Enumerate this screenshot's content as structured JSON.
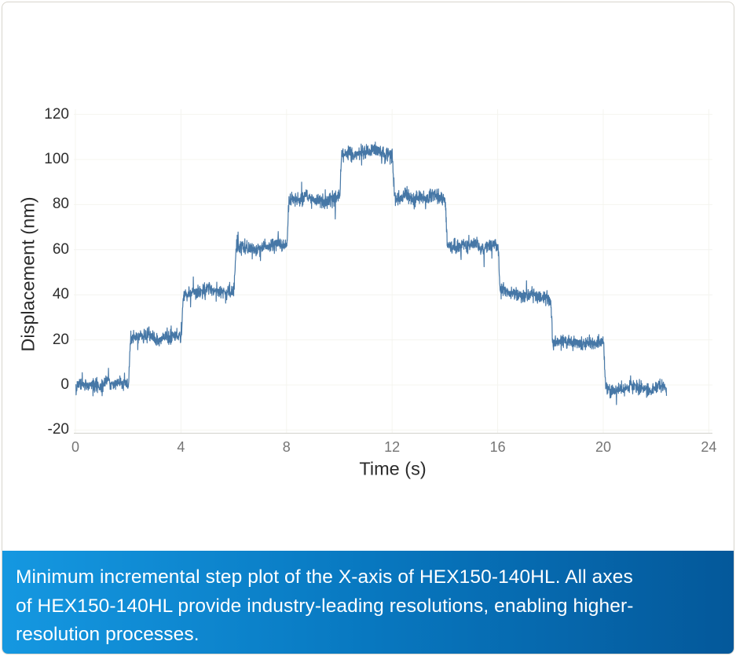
{
  "caption": {
    "lines": [
      "Minimum incremental step plot of the X-axis of HEX150-140HL. All axes",
      "of HEX150-140HL provide industry-leading resolutions, enabling higher-",
      "resolution processes."
    ],
    "full_text": "Minimum incremental step plot of the X-axis of HEX150-140HL. All axes of HEX150-140HL provide industry-leading resolutions, enabling higher-resolution processes.",
    "gradient_left": "#1598e1",
    "gradient_mid": "#0878c0",
    "gradient_right": "#04589a",
    "text_color": "#ffffff"
  },
  "colors": {
    "card_background": "#ffffff",
    "card_border": "#d8d5cc",
    "grid": "#f4f4ef",
    "axis_spine": "#d8d8d3",
    "y_tick_text": "#2e2e2e",
    "x_tick_text": "#757575",
    "axis_label_text": "#2b2b2b",
    "line": "#4677a6"
  },
  "chart_data": {
    "type": "line",
    "title": "",
    "xlabel": "Time (s)",
    "ylabel": "Displacement (nm)",
    "xlim": [
      0,
      24
    ],
    "ylim": [
      -22,
      123
    ],
    "xticks": [
      0,
      4,
      8,
      12,
      16,
      20,
      24
    ],
    "yticks": [
      -20,
      0,
      20,
      40,
      60,
      80,
      100,
      120
    ],
    "grid": true,
    "legend": "none",
    "description": "Noisy minimum incremental step response: 20 nm steps up from 0 to ~100 nm then back down to 0, 2 s per step, signal ends at ~22.4 s, noise ~±4 nm peak",
    "noise_std_nm": 1.5,
    "rise_time_s": 0.1,
    "series": [
      {
        "name": "X-axis displacement",
        "steps": [
          {
            "t0": 0,
            "t1": 2,
            "v0": 0.1,
            "v1": 1.0
          },
          {
            "t0": 2,
            "t1": 4,
            "v0": 20.6,
            "v1": 21.4
          },
          {
            "t0": 4,
            "t1": 6,
            "v0": 41.1,
            "v1": 41.9
          },
          {
            "t0": 6,
            "t1": 8,
            "v0": 61.1,
            "v1": 61.9
          },
          {
            "t0": 8,
            "t1": 10,
            "v0": 82.1,
            "v1": 82.9
          },
          {
            "t0": 10,
            "t1": 12,
            "v0": 102.6,
            "v1": 103.4
          },
          {
            "t0": 12,
            "t1": 14,
            "v0": 83.2,
            "v1": 82.8
          },
          {
            "t0": 14,
            "t1": 16,
            "v0": 62.2,
            "v1": 61.8
          },
          {
            "t0": 16,
            "t1": 18,
            "v0": 41.3,
            "v1": 38.6
          },
          {
            "t0": 18,
            "t1": 20,
            "v0": 19.0,
            "v1": 18.2
          },
          {
            "t0": 20,
            "t1": 22.4,
            "v0": -1.3,
            "v1": -1.7
          }
        ]
      }
    ]
  }
}
